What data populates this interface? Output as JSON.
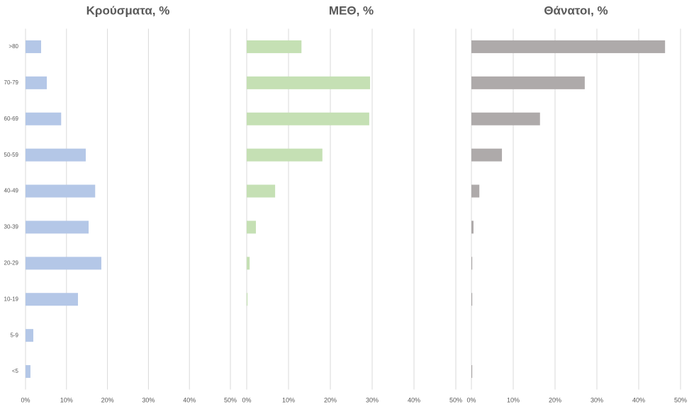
{
  "chart_data": [
    {
      "type": "hbar",
      "title": "Κρούσματα, %",
      "color": "#b4c7e7",
      "categories": [
        ">80",
        "70-79",
        "60-69",
        "50-59",
        "40-49",
        "30-39",
        "20-29",
        "10-19",
        "5-9",
        "<5"
      ],
      "values": [
        3.8,
        5.2,
        8.7,
        14.7,
        17.0,
        15.4,
        18.5,
        12.8,
        1.9,
        1.2
      ],
      "xlim": [
        0,
        50
      ],
      "grid": true,
      "xticks": [
        {
          "value": 0,
          "label": "0%"
        },
        {
          "value": 10,
          "label": "10%"
        },
        {
          "value": 20,
          "label": "20%"
        },
        {
          "value": 30,
          "label": "30%"
        },
        {
          "value": 40,
          "label": "40%"
        },
        {
          "value": 50,
          "label": "50%"
        }
      ]
    },
    {
      "type": "hbar",
      "title": "ΜΕΘ, %",
      "color": "#c5e0b4",
      "categories": [
        null,
        null,
        null,
        null,
        null,
        null,
        null,
        null,
        null,
        null
      ],
      "values": [
        13.1,
        29.5,
        29.3,
        18.1,
        6.8,
        2.2,
        0.7,
        0.2,
        0,
        0
      ],
      "xlim": [
        0,
        50
      ],
      "grid": true,
      "xticks": [
        {
          "value": 0,
          "label": "0%"
        },
        {
          "value": 10,
          "label": "10%"
        },
        {
          "value": 20,
          "label": "20%"
        },
        {
          "value": 30,
          "label": "30%"
        },
        {
          "value": 40,
          "label": "40%"
        },
        {
          "value": 50,
          "label": "50%"
        }
      ]
    },
    {
      "type": "hbar",
      "title": "Θάνατοι, %",
      "color": "#aeaaaa",
      "categories": [
        null,
        null,
        null,
        null,
        null,
        null,
        null,
        null,
        null,
        null
      ],
      "values": [
        46.3,
        27.1,
        16.4,
        7.3,
        1.9,
        0.5,
        0.2,
        0.2,
        0,
        0.2
      ],
      "xlim": [
        0,
        50
      ],
      "grid": true,
      "xticks": [
        {
          "value": 0,
          "label": "0%"
        },
        {
          "value": 10,
          "label": "10%"
        },
        {
          "value": 20,
          "label": "20%"
        },
        {
          "value": 30,
          "label": "30%"
        },
        {
          "value": 40,
          "label": "40%"
        },
        {
          "value": 50,
          "label": "50%"
        }
      ]
    }
  ]
}
